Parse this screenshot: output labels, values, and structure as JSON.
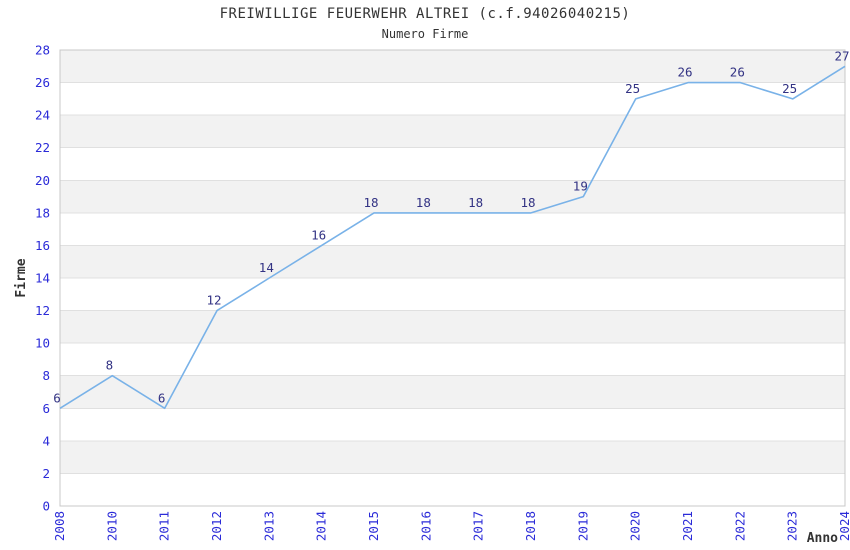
{
  "header": {
    "title": "FREIWILLIGE FEUERWEHR ALTREI (c.f.94026040215)",
    "subtitle": "Numero Firme"
  },
  "chart_data": {
    "type": "line",
    "title": "FREIWILLIGE FEUERWEHR ALTREI (c.f.94026040215)",
    "subtitle": "Numero Firme",
    "xlabel": "Anno",
    "ylabel": "Firme",
    "categories": [
      "2008",
      "2010",
      "2011",
      "2012",
      "2013",
      "2014",
      "2015",
      "2016",
      "2017",
      "2018",
      "2019",
      "2020",
      "2021",
      "2022",
      "2023",
      "2024"
    ],
    "values": [
      6,
      8,
      6,
      12,
      14,
      16,
      18,
      18,
      18,
      18,
      19,
      25,
      26,
      26,
      25,
      27
    ],
    "ylim": [
      0,
      28
    ],
    "ytick_step": 2,
    "grid": "horizontal-bands",
    "legend_position": "none",
    "x_tick_rotation": 90,
    "data_labels_visible": true,
    "colors": {
      "line": "#79b2e8",
      "tick_label": "#2b2bd8",
      "data_label": "#333384",
      "band": "#f2f2f2",
      "grid_line": "#e0e0e0",
      "axis_border": "#c8c8c8",
      "title_text": "#333333",
      "background": "#ffffff"
    }
  }
}
